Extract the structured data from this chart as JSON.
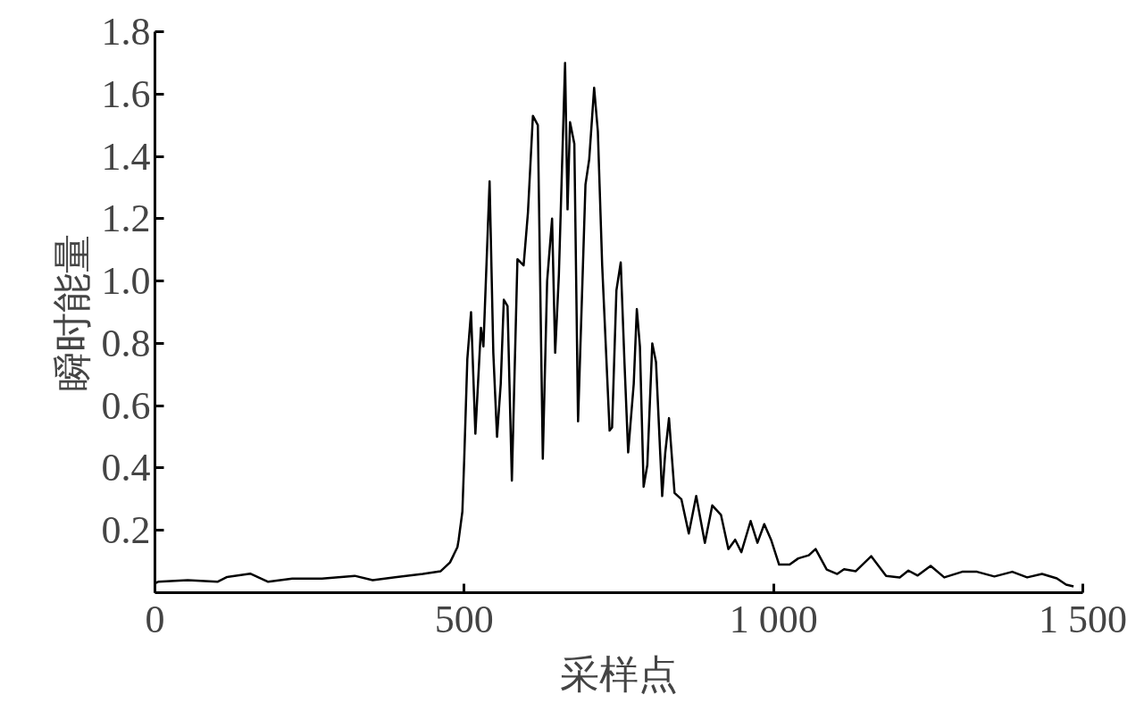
{
  "chart_data": {
    "type": "line",
    "xlabel": "采样点",
    "ylabel": "瞬时能量",
    "xlim": [
      0,
      1500
    ],
    "ylim": [
      0,
      1.8
    ],
    "xticks": [
      0,
      500,
      {
        "value": 1000,
        "label": "1 000"
      },
      {
        "value": 1500,
        "label": "1 500"
      }
    ],
    "yticks": [
      0.2,
      0.4,
      0.6,
      0.8,
      {
        "value": 1.0,
        "label": "1.0"
      },
      1.2,
      1.4,
      1.6,
      1.8
    ],
    "line_style": "solid",
    "series": [
      {
        "color": "#000000",
        "x": [
          0,
          5,
          53,
          101,
          116,
          154,
          183,
          222,
          270,
          323,
          352,
          391,
          433,
          462,
          477,
          489,
          491,
          497,
          500,
          505,
          511,
          518,
          527,
          531,
          541,
          547,
          553,
          559,
          564,
          570,
          577,
          586,
          596,
          603,
          611,
          619,
          627,
          634,
          642,
          647,
          653,
          663,
          667,
          671,
          678,
          684,
          696,
          702,
          710,
          716,
          723,
          735,
          739,
          746,
          753,
          759,
          765,
          774,
          779,
          784,
          790,
          796,
          804,
          810,
          820,
          825,
          831,
          840,
          851,
          863,
          875,
          889,
          901,
          915,
          927,
          938,
          948,
          963,
          974,
          985,
          996,
          1009,
          1026,
          1040,
          1057,
          1068,
          1086,
          1103,
          1114,
          1133,
          1158,
          1182,
          1204,
          1218,
          1233,
          1254,
          1276,
          1305,
          1329,
          1357,
          1386,
          1410,
          1434,
          1458,
          1473,
          1485
        ],
        "values": [
          0.03,
          0.035,
          0.04,
          0.035,
          0.05,
          0.061,
          0.035,
          0.045,
          0.045,
          0.054,
          0.04,
          0.05,
          0.06,
          0.069,
          0.097,
          0.146,
          0.17,
          0.26,
          0.43,
          0.75,
          0.9,
          0.51,
          0.85,
          0.79,
          1.32,
          0.77,
          0.5,
          0.67,
          0.94,
          0.92,
          0.36,
          1.07,
          1.05,
          1.22,
          1.53,
          1.5,
          0.43,
          1.0,
          1.2,
          0.77,
          1.02,
          1.7,
          1.23,
          1.51,
          1.44,
          0.55,
          1.31,
          1.39,
          1.62,
          1.48,
          1.05,
          0.52,
          0.53,
          0.97,
          1.06,
          0.74,
          0.45,
          0.67,
          0.91,
          0.79,
          0.34,
          0.41,
          0.8,
          0.74,
          0.31,
          0.45,
          0.56,
          0.32,
          0.3,
          0.19,
          0.31,
          0.16,
          0.28,
          0.25,
          0.14,
          0.17,
          0.13,
          0.23,
          0.16,
          0.22,
          0.17,
          0.09,
          0.09,
          0.11,
          0.12,
          0.14,
          0.074,
          0.06,
          0.075,
          0.069,
          0.117,
          0.054,
          0.049,
          0.071,
          0.055,
          0.086,
          0.049,
          0.067,
          0.067,
          0.052,
          0.067,
          0.049,
          0.06,
          0.046,
          0.026,
          0.02
        ]
      }
    ]
  }
}
